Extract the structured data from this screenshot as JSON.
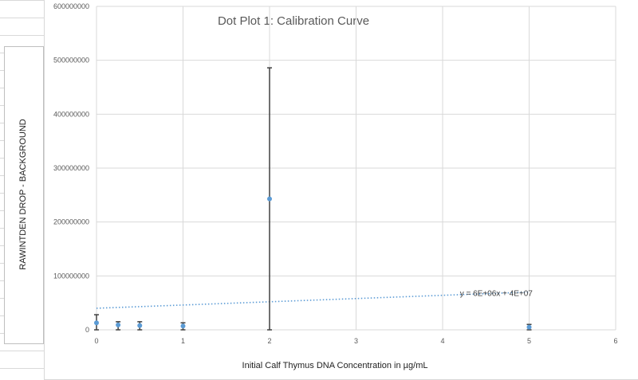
{
  "chart_data": {
    "type": "scatter",
    "title": "Dot Plot 1: Calibration Curve",
    "xlabel": "Initial Calf Thymus DNA Concentration in µg/mL",
    "ylabel": "RAWINTDEN DROP - BACKGROUND",
    "xlim": [
      0,
      6
    ],
    "ylim": [
      0,
      600000000
    ],
    "xticks": [
      "0",
      "1",
      "2",
      "3",
      "4",
      "5",
      "6"
    ],
    "yticks": [
      "0",
      "100000000",
      "200000000",
      "300000000",
      "400000000",
      "500000000",
      "600000000"
    ],
    "grid": true,
    "points": [
      {
        "x": 0,
        "y": 13000000,
        "err_low": 13000000,
        "err_high": 15000000
      },
      {
        "x": 0.25,
        "y": 9000000,
        "err_low": 9000000,
        "err_high": 6000000
      },
      {
        "x": 0.5,
        "y": 8000000,
        "err_low": 8000000,
        "err_high": 7000000
      },
      {
        "x": 1,
        "y": 7000000,
        "err_low": 7000000,
        "err_high": 6000000
      },
      {
        "x": 2,
        "y": 243000000,
        "err_low": 243000000,
        "err_high": 243000000
      },
      {
        "x": 5,
        "y": 5000000,
        "err_low": 5000000,
        "err_high": 5000000
      }
    ],
    "trendline": {
      "type": "linear",
      "slope": 6000000,
      "intercept": 40000000,
      "label": "y = 6E+06x + 4E+07"
    },
    "colors": {
      "points": "#5b9bd5",
      "errorbars": "#404040",
      "trendline": "#5b9bd5",
      "grid": "#d9d9d9"
    }
  }
}
